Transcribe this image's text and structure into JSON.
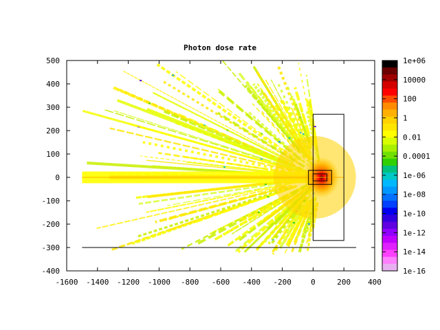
{
  "chart_data": {
    "type": "heatmap",
    "title": "Photon dose rate",
    "xlabel": "",
    "ylabel": "",
    "xlim": [
      -1600,
      400
    ],
    "ylim": [
      -400,
      500
    ],
    "x_ticks": [
      -1600,
      -1400,
      -1200,
      -1000,
      -800,
      -600,
      -400,
      -200,
      0,
      200,
      400
    ],
    "y_ticks": [
      -400,
      -300,
      -200,
      -100,
      0,
      100,
      200,
      300,
      400,
      500
    ],
    "x_tick_labels": [
      "-1600",
      "-1400",
      "-1200",
      "-1000",
      "-800",
      "-600",
      "-400",
      "-200",
      "0",
      "200",
      "400"
    ],
    "y_tick_labels": [
      "-400",
      "-300",
      "-200",
      "-100",
      "0",
      "100",
      "200",
      "300",
      "400",
      "500"
    ],
    "colorbar": {
      "scale": "log",
      "range": [
        1e-16,
        1000000.0
      ],
      "tick_labels": [
        "1e+06",
        "10000",
        "100",
        "1",
        "0.01",
        "0.0001",
        "1e-06",
        "1e-08",
        "1e-10",
        "1e-12",
        "1e-14",
        "1e-16"
      ],
      "colors": [
        "#000000",
        "#6b0000",
        "#a00000",
        "#d40000",
        "#ff0000",
        "#ff4c00",
        "#ff8c00",
        "#ffb000",
        "#ffd200",
        "#ffe600",
        "#ffff00",
        "#d8ff00",
        "#a8f000",
        "#70e000",
        "#30d000",
        "#00c080",
        "#00c8c8",
        "#00b8ff",
        "#0098ff",
        "#0070ff",
        "#0040ff",
        "#0000f0",
        "#3000e0",
        "#6000e0",
        "#9000ff",
        "#c000ff",
        "#e020ff",
        "#ff40ff",
        "#ff80ff",
        "#e8b0f0"
      ]
    },
    "source": {
      "x": 55,
      "y": 0
    },
    "geometry": {
      "beam_line_y": 0,
      "floor_line": {
        "x": [
          -1500,
          280
        ],
        "y": -300
      },
      "outer_box": {
        "x": [
          0,
          200
        ],
        "y": [
          -270,
          270
        ]
      },
      "shield_box": {
        "x": [
          -30,
          120
        ],
        "y": [
          -30,
          30
        ]
      },
      "inner_box": {
        "x": [
          0,
          90
        ],
        "y": [
          -15,
          15
        ]
      }
    },
    "field_extent": {
      "x": [
        -1500,
        270
      ],
      "y": [
        -330,
        500
      ]
    }
  }
}
